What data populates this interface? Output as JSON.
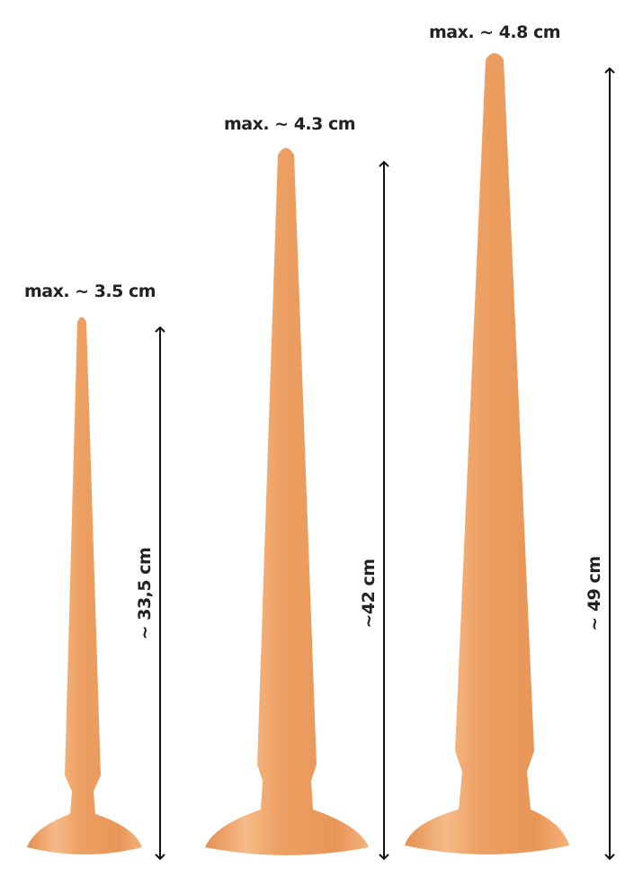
{
  "colors": {
    "body": "#eda063",
    "highlight": "#f7c594",
    "shade": "#e08c4e",
    "arrow": "#111111"
  },
  "products": [
    {
      "width_label": "max. ~ 3.5 cm",
      "length_label": "~ 33,5 cm"
    },
    {
      "width_label": "max. ~ 4.3 cm",
      "length_label": "~42 cm"
    },
    {
      "width_label": "max. ~ 4.8 cm",
      "length_label": "~ 49 cm"
    }
  ]
}
